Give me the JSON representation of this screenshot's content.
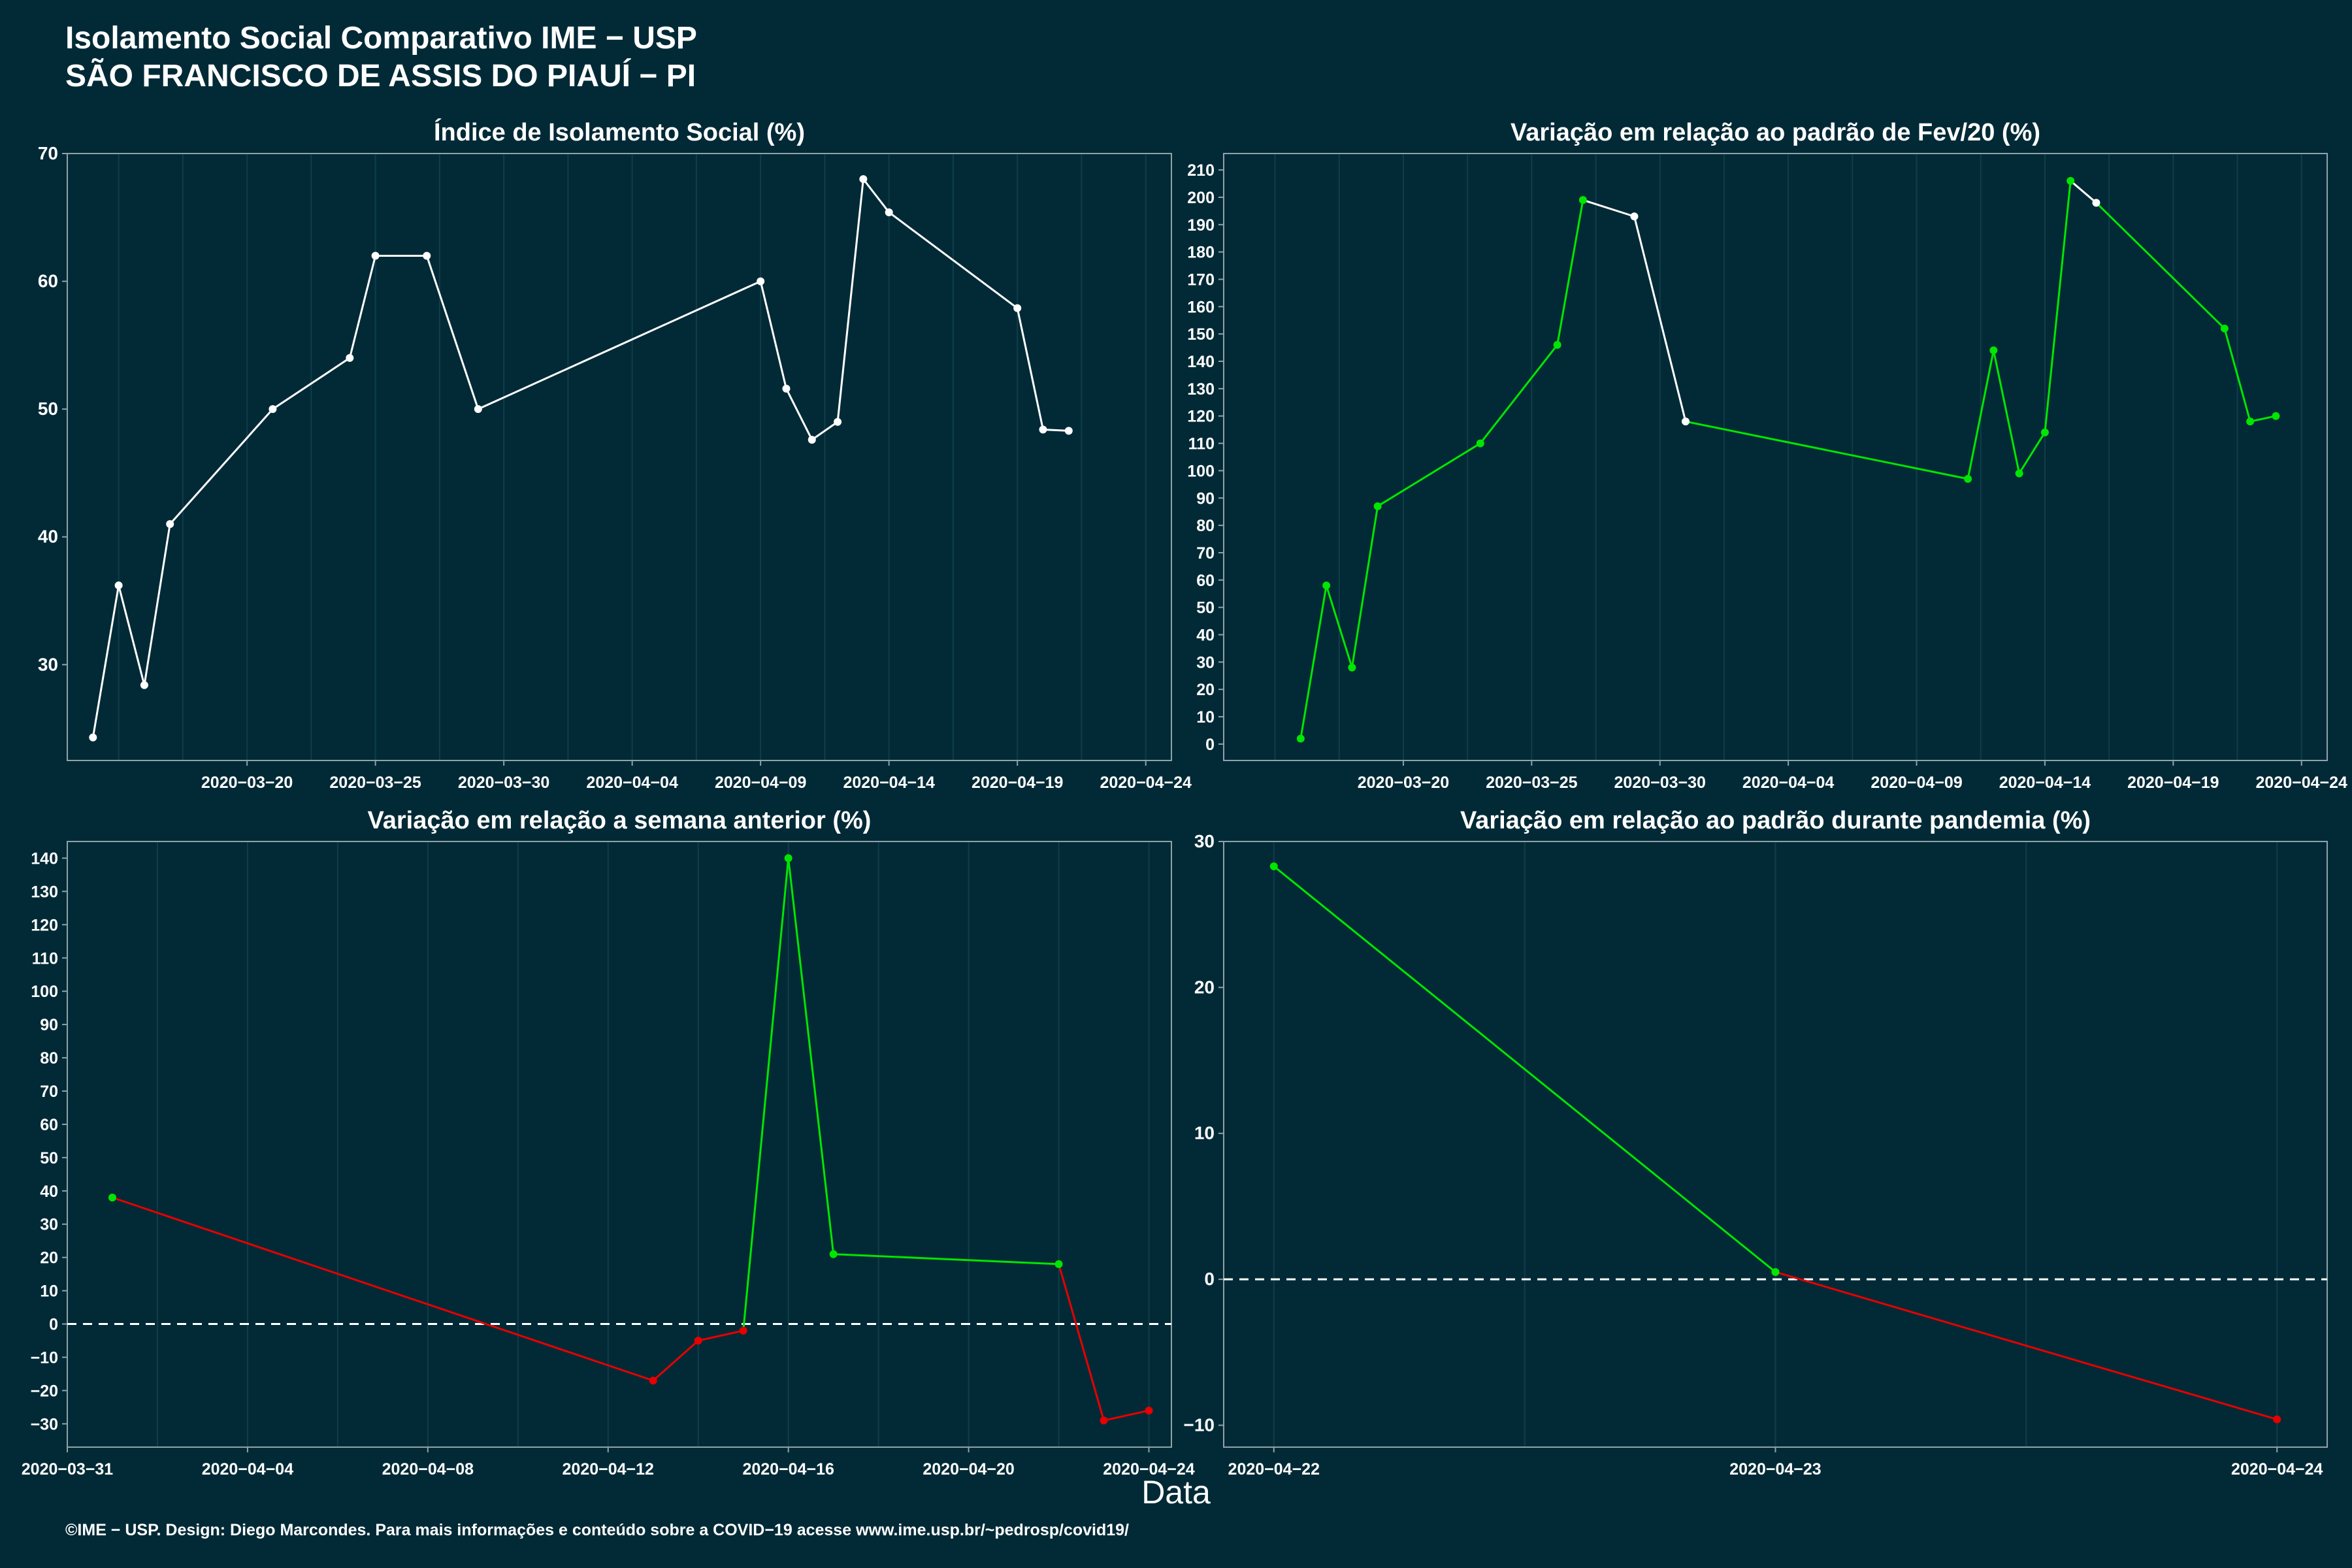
{
  "header": {
    "title_line1": "Isolamento Social Comparativo IME − USP",
    "title_line2": "SÃO FRANCISCO DE ASSIS DO PIAUÍ − PI"
  },
  "x_axis_label": "Data",
  "footer": "©IME − USP. Design: Diego Marcondes. Para mais informações e conteúdo sobre a COVID−19 acesse www.ime.usp.br/~pedrosp/covid19/",
  "colors": {
    "background": "#022a36",
    "panel_border": "#8fa3a8",
    "line_white": "#ffffff",
    "green": "#00e600",
    "red": "#e60000",
    "grid": "#0f3d4a"
  },
  "chart_data": [
    {
      "id": "isolamento",
      "type": "line",
      "title": "Índice de Isolamento Social (%)",
      "x_type": "date",
      "xlim": [
        "2020-03-13",
        "2020-04-25"
      ],
      "ylim": [
        22.5,
        70
      ],
      "x_ticks": [
        "2020-03-20",
        "2020-03-25",
        "2020-03-30",
        "2020-04-04",
        "2020-04-09",
        "2020-04-14",
        "2020-04-19",
        "2020-04-24"
      ],
      "y_ticks": [
        30,
        40,
        50,
        60,
        70
      ],
      "zero_line": false,
      "points": [
        {
          "x": "2020-03-14",
          "y": 24.3,
          "c": "white"
        },
        {
          "x": "2020-03-15",
          "y": 36.2,
          "c": "white"
        },
        {
          "x": "2020-03-16",
          "y": 28.4,
          "c": "white"
        },
        {
          "x": "2020-03-17",
          "y": 41.0,
          "c": "white"
        },
        {
          "x": "2020-03-21",
          "y": 50.0,
          "c": "white"
        },
        {
          "x": "2020-03-24",
          "y": 54.0,
          "c": "white"
        },
        {
          "x": "2020-03-25",
          "y": 62.0,
          "c": "white"
        },
        {
          "x": "2020-03-27",
          "y": 62.0,
          "c": "white"
        },
        {
          "x": "2020-03-29",
          "y": 50.0,
          "c": "white"
        },
        {
          "x": "2020-04-09",
          "y": 60.0,
          "c": "white"
        },
        {
          "x": "2020-04-10",
          "y": 51.6,
          "c": "white"
        },
        {
          "x": "2020-04-11",
          "y": 47.6,
          "c": "white"
        },
        {
          "x": "2020-04-12",
          "y": 49.0,
          "c": "white"
        },
        {
          "x": "2020-04-13",
          "y": 68.0,
          "c": "white"
        },
        {
          "x": "2020-04-14",
          "y": 65.4,
          "c": "white"
        },
        {
          "x": "2020-04-19",
          "y": 57.9,
          "c": "white"
        },
        {
          "x": "2020-04-20",
          "y": 48.4,
          "c": "white"
        },
        {
          "x": "2020-04-21",
          "y": 48.3,
          "c": "white"
        }
      ]
    },
    {
      "id": "fev20",
      "type": "line",
      "title": "Variação em relação ao padrão de Fev/20 (%)",
      "x_type": "date",
      "xlim": [
        "2020-03-13",
        "2020-04-25"
      ],
      "ylim": [
        -6,
        216
      ],
      "x_ticks": [
        "2020-03-20",
        "2020-03-25",
        "2020-03-30",
        "2020-04-04",
        "2020-04-09",
        "2020-04-14",
        "2020-04-19",
        "2020-04-24"
      ],
      "y_ticks": [
        0,
        10,
        20,
        30,
        40,
        50,
        60,
        70,
        80,
        90,
        100,
        110,
        120,
        130,
        140,
        150,
        160,
        170,
        180,
        190,
        200,
        210
      ],
      "zero_line": false,
      "points": [
        {
          "x": "2020-03-16",
          "y": 2,
          "c": "green"
        },
        {
          "x": "2020-03-17",
          "y": 58,
          "c": "green"
        },
        {
          "x": "2020-03-18",
          "y": 28,
          "c": "green"
        },
        {
          "x": "2020-03-19",
          "y": 87,
          "c": "green"
        },
        {
          "x": "2020-03-23",
          "y": 110,
          "c": "green"
        },
        {
          "x": "2020-03-26",
          "y": 146,
          "c": "green"
        },
        {
          "x": "2020-03-27",
          "y": 199,
          "c": "green"
        },
        {
          "x": "2020-03-29",
          "y": 193,
          "c": "white"
        },
        {
          "x": "2020-03-31",
          "y": 118,
          "c": "white"
        },
        {
          "x": "2020-04-11",
          "y": 97,
          "c": "green"
        },
        {
          "x": "2020-04-12",
          "y": 144,
          "c": "green"
        },
        {
          "x": "2020-04-13",
          "y": 99,
          "c": "green"
        },
        {
          "x": "2020-04-14",
          "y": 114,
          "c": "green"
        },
        {
          "x": "2020-04-15",
          "y": 206,
          "c": "green"
        },
        {
          "x": "2020-04-16",
          "y": 198,
          "c": "white"
        },
        {
          "x": "2020-04-21",
          "y": 152,
          "c": "green"
        },
        {
          "x": "2020-04-22",
          "y": 118,
          "c": "green"
        },
        {
          "x": "2020-04-23",
          "y": 120,
          "c": "green"
        }
      ]
    },
    {
      "id": "semana",
      "type": "line",
      "title": "Variação em relação a semana anterior (%)",
      "x_type": "date",
      "xlim": [
        "2020-03-31",
        "2020-04-24.5"
      ],
      "ylim": [
        -37,
        145
      ],
      "x_ticks": [
        "2020-03-31",
        "2020-04-04",
        "2020-04-08",
        "2020-04-12",
        "2020-04-16",
        "2020-04-20",
        "2020-04-24"
      ],
      "y_ticks": [
        -30,
        -20,
        -10,
        0,
        10,
        20,
        30,
        40,
        50,
        60,
        70,
        80,
        90,
        100,
        110,
        120,
        130,
        140
      ],
      "zero_line": true,
      "points": [
        {
          "x": "2020-04-01",
          "y": 38,
          "c": "green"
        },
        {
          "x": "2020-04-13",
          "y": -17,
          "c": "red"
        },
        {
          "x": "2020-04-14",
          "y": -5,
          "c": "red"
        },
        {
          "x": "2020-04-15",
          "y": -2,
          "c": "red"
        },
        {
          "x": "2020-04-16",
          "y": 140,
          "c": "green"
        },
        {
          "x": "2020-04-17",
          "y": 21,
          "c": "green"
        },
        {
          "x": "2020-04-22",
          "y": 18,
          "c": "green"
        },
        {
          "x": "2020-04-23",
          "y": -29,
          "c": "red"
        },
        {
          "x": "2020-04-24",
          "y": -26,
          "c": "red"
        }
      ]
    },
    {
      "id": "pandemia",
      "type": "line",
      "title": "Variação em relação ao padrão durante pandemia (%)",
      "x_type": "date",
      "xlim": [
        "2020-04-21.9",
        "2020-04-24.1"
      ],
      "ylim": [
        -11.5,
        30
      ],
      "x_ticks": [
        "2020-04-22",
        "2020-04-23",
        "2020-04-24"
      ],
      "y_ticks": [
        -10,
        0,
        10,
        20,
        30
      ],
      "zero_line": true,
      "points": [
        {
          "x": "2020-04-22",
          "y": 28.3,
          "c": "green"
        },
        {
          "x": "2020-04-23",
          "y": 0.5,
          "c": "green"
        },
        {
          "x": "2020-04-24",
          "y": -9.6,
          "c": "red"
        }
      ]
    }
  ]
}
